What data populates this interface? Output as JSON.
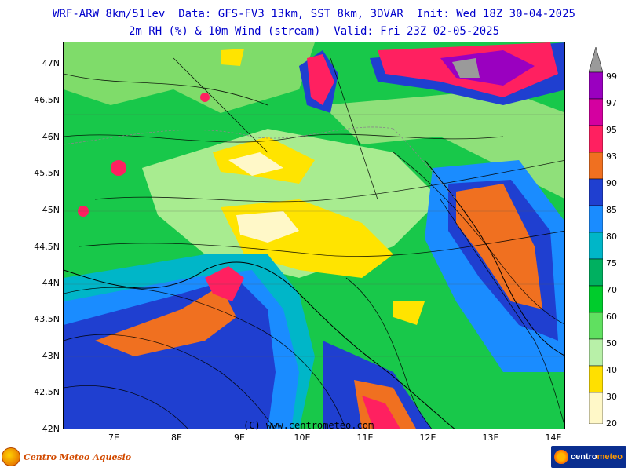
{
  "header": {
    "line1": "WRF-ARW 8km/51lev  Data: GFS-FV3 13km, SST 8km, 3DVAR  Init: Wed 18Z 30-04-2025",
    "line2": "2m RH (%) & 10m Wind (stream)  Valid: Fri 23Z 02-05-2025"
  },
  "map": {
    "lat_labels": [
      "47N",
      "46.5N",
      "46N",
      "45.5N",
      "45N",
      "44.5N",
      "44N",
      "43.5N",
      "43N",
      "42.5N",
      "42N"
    ],
    "lon_labels": [
      "7E",
      "8E",
      "9E",
      "10E",
      "11E",
      "12E",
      "13E",
      "14E"
    ],
    "lat_range": [
      42,
      47.3
    ],
    "lon_range": [
      6.2,
      14.2
    ],
    "copyright": "(C) www.centrometeo.com"
  },
  "colorbar": {
    "labels": [
      "99",
      "97",
      "95",
      "93",
      "90",
      "85",
      "80",
      "75",
      "70",
      "60",
      "50",
      "40",
      "30",
      "20"
    ],
    "colors": [
      "#9a9a9a",
      "#9a00c0",
      "#d400a0",
      "#ff2060",
      "#f07020",
      "#ff9a10",
      "#1f3fd0",
      "#1a8cff",
      "#00b6c8",
      "#00b060",
      "#00cc2c",
      "#60e060",
      "#b8f0a8",
      "#ffe000",
      "#fff8c8",
      "#ffffff"
    ]
  },
  "logos": {
    "left_text": "Centro Meteo Aquesio",
    "right_text_a": "centro",
    "right_text_b": "meteo"
  }
}
